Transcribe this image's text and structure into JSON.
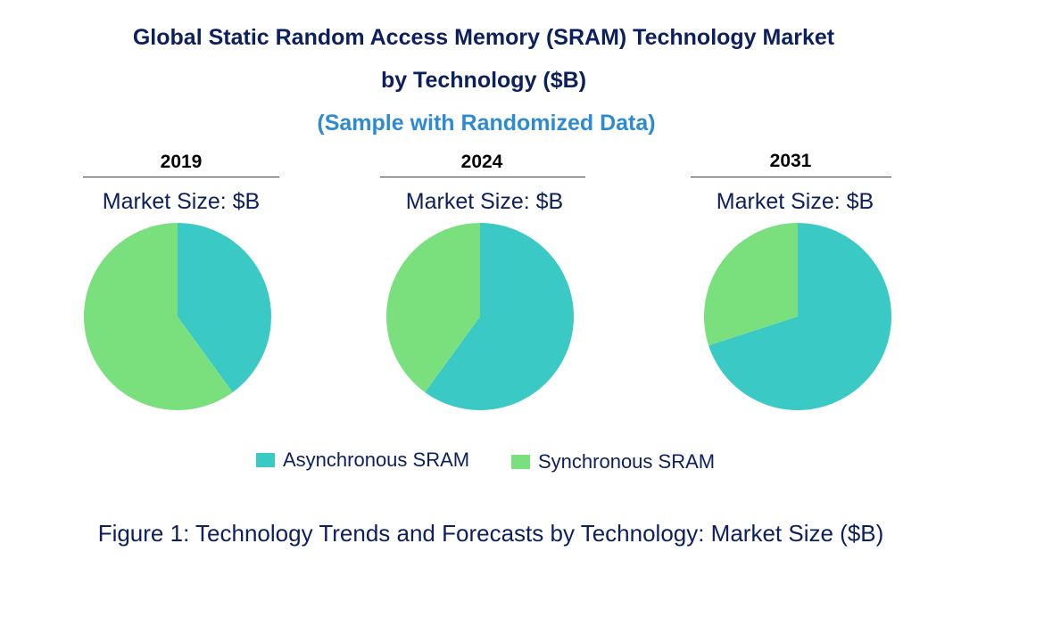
{
  "title": {
    "line1": "Global Static Random Access Memory (SRAM) Technology Market",
    "line2": "by Technology ($B)",
    "subtitle": "(Sample with Randomized Data)"
  },
  "market_size_label": "Market Size: $B",
  "caption": "Figure 1: Technology Trends and Forecasts by Technology: Market Size ($B)",
  "colors": {
    "asynchronous": "#3ac9c4",
    "synchronous": "#79e07d",
    "title": "#0d1f5c",
    "subtitle": "#2e8bd1"
  },
  "chart_data": [
    {
      "type": "pie",
      "title": "2019",
      "labels": [
        "Asynchronous SRAM",
        "Synchronous SRAM"
      ],
      "values": [
        40,
        60
      ]
    },
    {
      "type": "pie",
      "title": "2024",
      "labels": [
        "Asynchronous SRAM",
        "Synchronous SRAM"
      ],
      "values": [
        60,
        40
      ]
    },
    {
      "type": "pie",
      "title": "2031",
      "labels": [
        "Asynchronous SRAM",
        "Synchronous SRAM"
      ],
      "values": [
        70,
        30
      ]
    }
  ],
  "legend": [
    {
      "label": "Asynchronous SRAM",
      "color": "#3ac9c4"
    },
    {
      "label": "Synchronous SRAM",
      "color": "#79e07d"
    }
  ]
}
